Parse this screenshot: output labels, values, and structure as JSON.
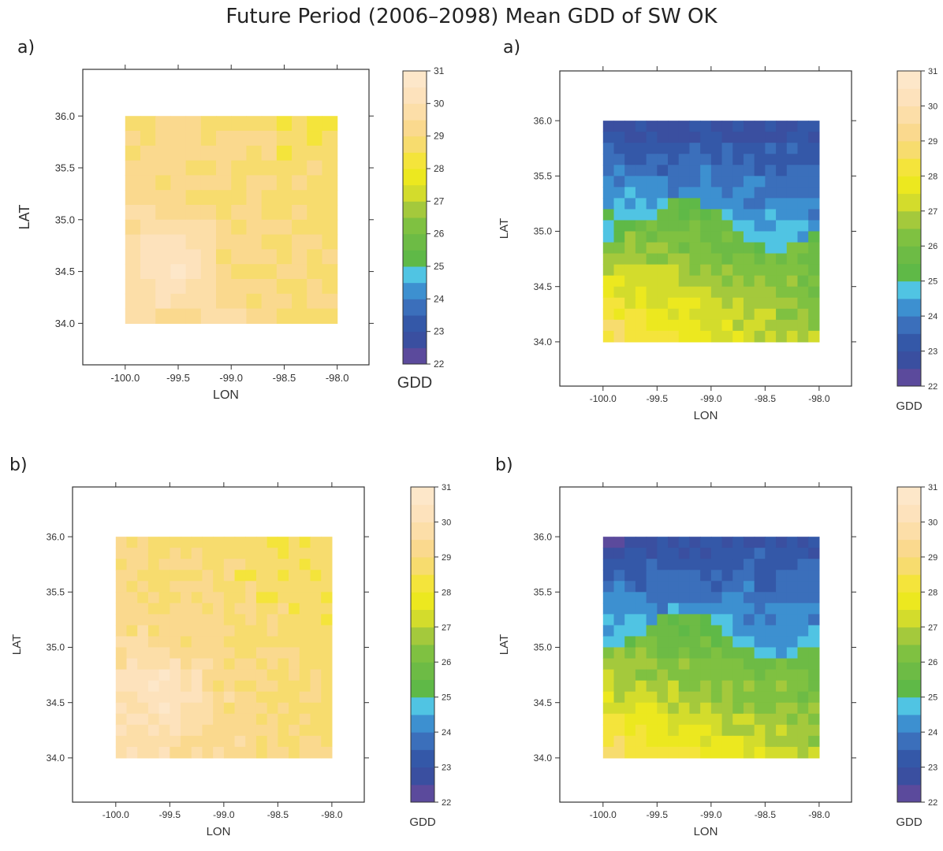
{
  "title": "Future Period (2006–2098) Mean GDD of SW OK",
  "colors": {
    "scale": [
      "#5b4a9c",
      "#3a4fa0",
      "#3458a8",
      "#3b6fbb",
      "#3d90d0",
      "#50c4e3",
      "#5fb947",
      "#6dbb45",
      "#7fc141",
      "#a4c93c",
      "#d3dc2c",
      "#ece81f",
      "#f4e43b",
      "#f7dc6e",
      "#fad98e",
      "#fcdea8",
      "#fde2bc",
      "#fde7c9"
    ]
  },
  "chart_data": [
    {
      "type": "heatmap",
      "panel_label": "a)",
      "xlabel": "LON",
      "ylabel": "LAT",
      "colorbar_label": "GDD",
      "x_ticks": [
        "-100.0",
        "-99.5",
        "-99.0",
        "-98.5",
        "-98.0"
      ],
      "y_ticks": [
        "34.0",
        "34.5",
        "35.0",
        "35.5",
        "36.0"
      ],
      "colorbar_ticks": [
        "22",
        "23",
        "24",
        "25",
        "26",
        "27",
        "28",
        "29",
        "30",
        "31"
      ],
      "xlim": [
        -100.4,
        -97.7
      ],
      "ylim": [
        33.6,
        36.45
      ],
      "data_extent": {
        "lon": [
          -100.0,
          -98.0
        ],
        "lat": [
          34.0,
          36.0
        ]
      },
      "clim": [
        22,
        31
      ],
      "grid": {
        "nx": 14,
        "ny": 14
      },
      "field": {
        "top_left": 29.1,
        "top_right": 28.5,
        "bottom_left": 29.9,
        "bottom_right": 29.0,
        "hotspot": {
          "lon": -99.6,
          "lat": 34.6,
          "value": 30.6,
          "radius": 0.5
        }
      }
    },
    {
      "type": "heatmap",
      "panel_label": "a)",
      "xlabel": "LON",
      "ylabel": "LAT",
      "colorbar_label": "GDD",
      "x_ticks": [
        "-100.0",
        "-99.5",
        "-99.0",
        "-98.5",
        "-98.0"
      ],
      "y_ticks": [
        "34.0",
        "34.5",
        "35.0",
        "35.5",
        "36.0"
      ],
      "colorbar_ticks": [
        "22",
        "23",
        "24",
        "25",
        "26",
        "27",
        "28",
        "29",
        "30",
        "31"
      ],
      "xlim": [
        -100.4,
        -97.7
      ],
      "ylim": [
        33.6,
        36.45
      ],
      "data_extent": {
        "lon": [
          -100.0,
          -98.0
        ],
        "lat": [
          34.0,
          36.0
        ]
      },
      "clim": [
        22,
        31
      ],
      "grid": {
        "nx": 20,
        "ny": 20
      },
      "field": {
        "top_left": 23.2,
        "top_right": 23.5,
        "bottom_left": 28.3,
        "bottom_right": 26.3,
        "front_lat": 35.1,
        "front_jump": 1.3
      }
    },
    {
      "type": "heatmap",
      "panel_label": "b)",
      "xlabel": "LON",
      "ylabel": "LAT",
      "colorbar_label": "GDD",
      "x_ticks": [
        "-100.0",
        "-99.5",
        "-99.0",
        "-98.5",
        "-98.0"
      ],
      "y_ticks": [
        "34.0",
        "34.5",
        "35.0",
        "35.5",
        "36.0"
      ],
      "colorbar_ticks": [
        "22",
        "23",
        "24",
        "25",
        "26",
        "27",
        "28",
        "29",
        "30",
        "31"
      ],
      "xlim": [
        -100.4,
        -97.7
      ],
      "ylim": [
        33.6,
        36.45
      ],
      "data_extent": {
        "lon": [
          -100.0,
          -98.0
        ],
        "lat": [
          34.0,
          36.0
        ]
      },
      "clim": [
        22,
        31
      ],
      "grid": {
        "nx": 20,
        "ny": 20
      },
      "field": {
        "top_left": 29.0,
        "top_right": 28.4,
        "bottom_left": 29.9,
        "bottom_right": 29.0,
        "hotspot": {
          "lon": -99.6,
          "lat": 34.6,
          "value": 30.6,
          "radius": 0.55
        }
      }
    },
    {
      "type": "heatmap",
      "panel_label": "b)",
      "xlabel": "LON",
      "ylabel": "LAT",
      "colorbar_label": "GDD",
      "x_ticks": [
        "-100.0",
        "-99.5",
        "-99.0",
        "-98.5",
        "-98.0"
      ],
      "y_ticks": [
        "34.0",
        "34.5",
        "35.0",
        "35.5",
        "36.0"
      ],
      "colorbar_ticks": [
        "22",
        "23",
        "24",
        "25",
        "26",
        "27",
        "28",
        "29",
        "30",
        "31"
      ],
      "xlim": [
        -100.4,
        -97.7
      ],
      "ylim": [
        33.6,
        36.45
      ],
      "data_extent": {
        "lon": [
          -100.0,
          -98.0
        ],
        "lat": [
          34.0,
          36.0
        ]
      },
      "clim": [
        22,
        31
      ],
      "grid": {
        "nx": 20,
        "ny": 20
      },
      "field": {
        "top_left": 23.1,
        "top_right": 23.6,
        "bottom_left": 28.3,
        "bottom_right": 26.4,
        "front_lat": 35.15,
        "front_jump": 1.3
      }
    }
  ]
}
